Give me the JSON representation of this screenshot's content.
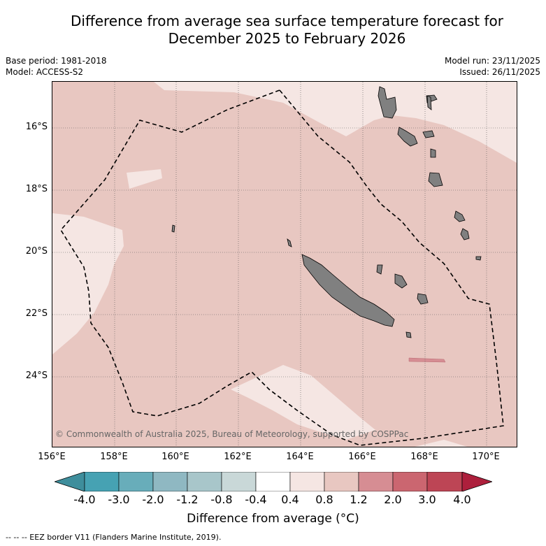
{
  "title_line1": "Difference from average sea surface temperature forecast for",
  "title_line2": "December 2025 to February 2026",
  "base_period": "Base period: 1981-2018",
  "model": "Model: ACCESS-S2",
  "model_run": "Model run: 23/11/2025",
  "issued": "Issued: 26/11/2025",
  "copyright": "© Commonwealth of Australia 2025, Bureau of Meteorology, supported by COSPPac",
  "lat_labels": [
    "16°S",
    "18°S",
    "20°S",
    "22°S",
    "24°S"
  ],
  "lon_labels": [
    "156°E",
    "158°E",
    "160°E",
    "162°E",
    "164°E",
    "166°E",
    "168°E",
    "170°E"
  ],
  "colorbar": {
    "ticks": [
      "-4.0",
      "-3.0",
      "-2.0",
      "-1.2",
      "-0.8",
      "-0.4",
      "0.4",
      "0.8",
      "1.2",
      "2.0",
      "3.0",
      "4.0"
    ],
    "colors": [
      "#3e8e9c",
      "#46a2b3",
      "#68adba",
      "#8fb8c2",
      "#a8c6ca",
      "#c9d8d8",
      "#ffffff",
      "#f5e6e3",
      "#e8c7c1",
      "#d68d93",
      "#cb6670",
      "#bd4555",
      "#ad1f3c"
    ],
    "label": "Difference from average (°C)"
  },
  "legend_text": "-- -- -- EEZ border V11 (Flanders Marine Institute, 2019).",
  "map_colors": {
    "base": "#e8c7c1",
    "light": "#f5e6e3",
    "warm": "#d68d93",
    "land": "#808080"
  }
}
